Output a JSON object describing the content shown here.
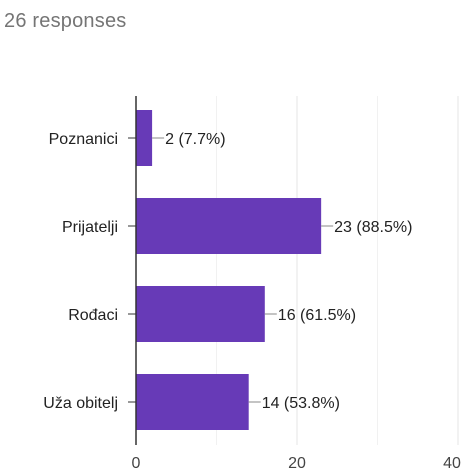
{
  "summary": {
    "responses_text": "26 responses"
  },
  "colors": {
    "bar": "#673ab7",
    "gridline": "#e6e6e6",
    "axis": "#333333",
    "leader": "#888888"
  },
  "chart_data": {
    "type": "bar",
    "orientation": "horizontal",
    "categories": [
      "Poznanici",
      "Prijatelji",
      "Rođaci",
      "Uža obitelj"
    ],
    "values": [
      2,
      23,
      16,
      14
    ],
    "data_labels": [
      "2 (7.7%)",
      "23 (88.5%)",
      "16 (61.5%)",
      "14 (53.8%)"
    ],
    "xlim": [
      0,
      40
    ],
    "x_ticks": [
      0,
      20,
      40
    ],
    "x_tick_labels": [
      "0",
      "20",
      "40"
    ],
    "grid": true,
    "legend": "none"
  }
}
